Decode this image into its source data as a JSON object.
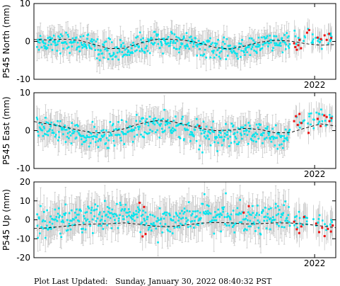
{
  "footer": {
    "label": "Plot Last Updated:",
    "value": "Sunday, January 30, 2022 08:40:32 PST"
  },
  "style": {
    "point_color": "#00e5ee",
    "recent_point_color": "#ee1111",
    "error_bar_color": "#c8c8c8",
    "model_line_color": "#000000"
  },
  "chart_data": [
    {
      "type": "scatter",
      "ylabel": "P545 North (mm)",
      "ylim": [
        -10,
        10
      ],
      "yticks": [
        -10,
        0,
        10
      ],
      "xtick_labels": [
        "2022"
      ],
      "grid": false,
      "model_trend": [
        0.5,
        0.4,
        0.6,
        0.3,
        -0.8,
        -1.9,
        -1.8,
        -0.5,
        0.5,
        0.6,
        0.3,
        -0.5,
        -1.6,
        -2.0,
        -1.2,
        -0.2,
        0.3,
        0.1,
        -0.6,
        -1.0,
        -0.8
      ],
      "recent_points": [
        {
          "t": 0.862,
          "y": -0.5
        },
        {
          "t": 0.866,
          "y": -1.5
        },
        {
          "t": 0.871,
          "y": -2.2
        },
        {
          "t": 0.876,
          "y": -1.0
        },
        {
          "t": 0.88,
          "y": 0.4
        },
        {
          "t": 0.885,
          "y": -1.8
        },
        {
          "t": 0.905,
          "y": 2.3
        },
        {
          "t": 0.912,
          "y": 3.0
        },
        {
          "t": 0.94,
          "y": 1.0
        },
        {
          "t": 0.951,
          "y": 0.6
        },
        {
          "t": 0.963,
          "y": 1.6
        },
        {
          "t": 0.97,
          "y": 0.4
        },
        {
          "t": 0.978,
          "y": 2.0
        },
        {
          "t": 0.985,
          "y": 0.9
        }
      ]
    },
    {
      "type": "scatter",
      "ylabel": "P545 East (mm)",
      "ylim": [
        -10,
        10
      ],
      "yticks": [
        -10,
        0,
        10
      ],
      "xtick_labels": [
        "2022"
      ],
      "grid": false,
      "model_trend": [
        2.4,
        1.7,
        1.0,
        0.1,
        -0.6,
        -0.4,
        0.5,
        1.8,
        2.6,
        2.5,
        1.6,
        0.6,
        0.0,
        0.1,
        0.6,
        0.3,
        -0.6,
        -0.5,
        0.7,
        1.8,
        1.2
      ],
      "recent_points": [
        {
          "t": 0.548,
          "y": 1.2
        },
        {
          "t": 0.862,
          "y": 2.5
        },
        {
          "t": 0.868,
          "y": 3.8
        },
        {
          "t": 0.874,
          "y": 1.5
        },
        {
          "t": 0.88,
          "y": 4.4
        },
        {
          "t": 0.886,
          "y": 2.0
        },
        {
          "t": 0.91,
          "y": -0.6
        },
        {
          "t": 0.94,
          "y": 3.1
        },
        {
          "t": 0.95,
          "y": 1.2
        },
        {
          "t": 0.962,
          "y": 4.0
        },
        {
          "t": 0.97,
          "y": 3.6
        },
        {
          "t": 0.979,
          "y": 2.5
        },
        {
          "t": 0.986,
          "y": 3.3
        }
      ]
    },
    {
      "type": "scatter",
      "ylabel": "P545 Up (mm)",
      "ylim": [
        -20,
        20
      ],
      "yticks": [
        -20,
        -10,
        0,
        10,
        20
      ],
      "xtick_labels": [
        "2022"
      ],
      "grid": false,
      "model_trend": [
        -4.6,
        -4.2,
        -3.4,
        -2.6,
        -2.2,
        -2.1,
        -1.6,
        -2.4,
        -3.4,
        -3.6,
        -2.8,
        -1.8,
        -1.4,
        -1.6,
        -2.2,
        -2.0,
        -1.6,
        -1.7,
        -2.3,
        -3.2,
        -4.2
      ],
      "recent_points": [
        {
          "t": 0.35,
          "y": 9.0
        },
        {
          "t": 0.365,
          "y": 6.8
        },
        {
          "t": 0.37,
          "y": -7.5
        },
        {
          "t": 0.36,
          "y": -8.8
        },
        {
          "t": 0.695,
          "y": 3.8
        },
        {
          "t": 0.712,
          "y": 7.2
        },
        {
          "t": 0.862,
          "y": -1.0
        },
        {
          "t": 0.871,
          "y": -5.0
        },
        {
          "t": 0.879,
          "y": -7.0
        },
        {
          "t": 0.886,
          "y": -3.5
        },
        {
          "t": 0.895,
          "y": 1.5
        },
        {
          "t": 0.935,
          "y": -2.0
        },
        {
          "t": 0.945,
          "y": -6.5
        },
        {
          "t": 0.955,
          "y": -4.2
        },
        {
          "t": 0.963,
          "y": -8.6
        },
        {
          "t": 0.974,
          "y": -4.8
        },
        {
          "t": 0.984,
          "y": -6.2
        },
        {
          "t": 0.99,
          "y": -3.0
        }
      ]
    }
  ]
}
